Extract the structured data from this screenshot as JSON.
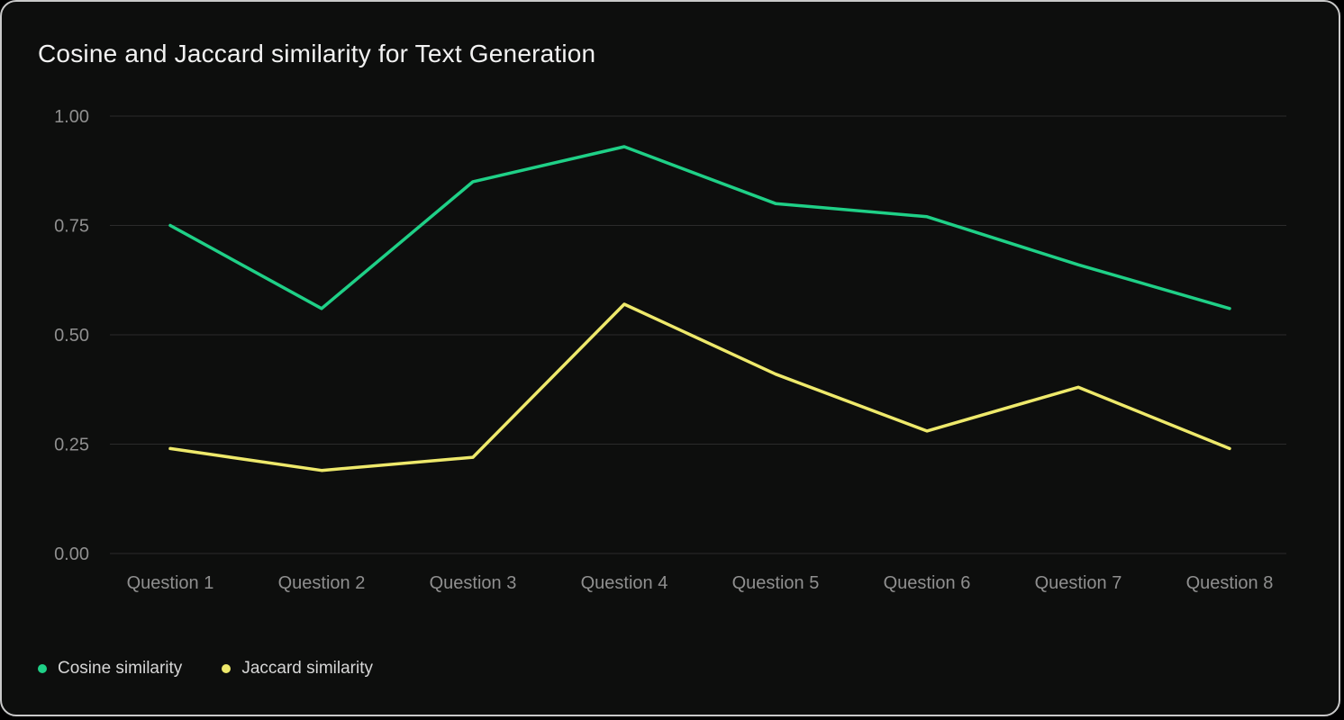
{
  "chart_data": {
    "type": "line",
    "title": "Cosine and Jaccard similarity for Text Generation",
    "categories": [
      "Question 1",
      "Question 2",
      "Question 3",
      "Question 4",
      "Question 5",
      "Question 6",
      "Question 7",
      "Question 8"
    ],
    "series": [
      {
        "name": "Cosine similarity",
        "color": "#1fd087",
        "values": [
          0.75,
          0.56,
          0.85,
          0.93,
          0.8,
          0.77,
          0.66,
          0.56
        ]
      },
      {
        "name": "Jaccard similarity",
        "color": "#eee96b",
        "values": [
          0.24,
          0.19,
          0.22,
          0.57,
          0.41,
          0.28,
          0.38,
          0.24
        ]
      }
    ],
    "ylim": [
      0,
      1
    ],
    "yticks": [
      "1.00",
      "0.75",
      "0.50",
      "0.25",
      "0.00"
    ],
    "ytick_values": [
      1.0,
      0.75,
      0.5,
      0.25,
      0.0
    ],
    "xlabel": "",
    "ylabel": "",
    "grid": "horizontal",
    "legend_position": "bottom-left",
    "background_color": "#0d0e0d",
    "gridline_color": "#2b2b2b",
    "axis_label_color": "#8f8f8f",
    "title_color": "#f2f2f2"
  }
}
